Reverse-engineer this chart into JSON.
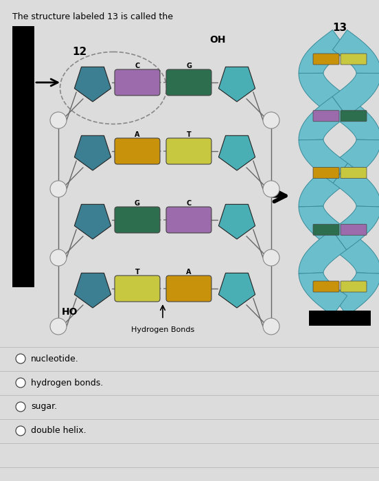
{
  "title": "The structure labeled 13 is called the",
  "bg_color": "#dcdcdc",
  "label_12": "12",
  "label_13": "13",
  "label_HO": "HO",
  "label_OH": "OH",
  "label_hydrogen_bonds": "Hydrogen Bonds",
  "answer_choices": [
    "nucleotide.",
    "hydrogen bonds.",
    "sugar.",
    "double helix."
  ],
  "left_bases": [
    "C",
    "A",
    "G",
    "T"
  ],
  "right_bases": [
    "G",
    "T",
    "C",
    "A"
  ],
  "left_colors": [
    "#9b6bab",
    "#c8920a",
    "#2d6e4e",
    "#c8c840"
  ],
  "right_colors": [
    "#2d6e4e",
    "#c8c840",
    "#9b6bab",
    "#c8920a"
  ],
  "pent_left_color": "#3d7f92",
  "pent_right_color": "#4aafb5",
  "strand_color": "#6bbfcc",
  "strand_edge": "#3a8a99",
  "rung_colors": [
    [
      "#c8920a",
      "#c8c840"
    ],
    [
      "#9b6bab",
      "#2d6e4e"
    ],
    [
      "#c8920a",
      "#c8c840"
    ],
    [
      "#2d6e4e",
      "#9b6bab"
    ],
    [
      "#c8920a",
      "#c8c840"
    ]
  ]
}
